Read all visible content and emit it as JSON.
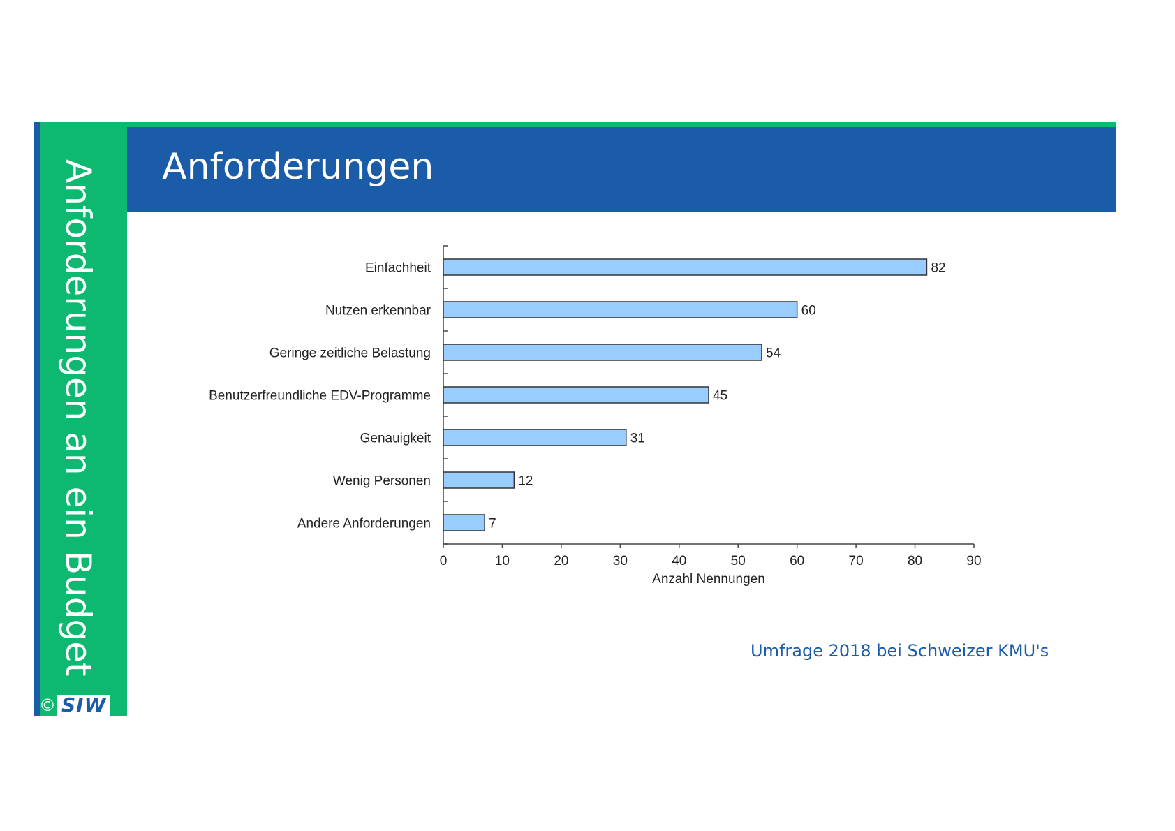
{
  "slide": {
    "side_title": "Anforderungen an ein Budget",
    "header_title": "Anforderungen",
    "footnote": "Umfrage 2018 bei Schweizer KMU's",
    "logo": {
      "copyright": "©",
      "text": "SIW"
    }
  },
  "colors": {
    "brand_blue": "#1b5ca9",
    "brand_green": "#0db870",
    "bar_fill": "#99ccff",
    "bar_stroke": "#333333"
  },
  "chart_data": {
    "type": "bar",
    "orientation": "horizontal",
    "categories": [
      "Einfachheit",
      "Nutzen erkennbar",
      "Geringe zeitliche Belastung",
      "Benutzerfreundliche EDV-Programme",
      "Genauigkeit",
      "Wenig Personen",
      "Andere Anforderungen"
    ],
    "values": [
      82,
      60,
      54,
      45,
      31,
      12,
      7
    ],
    "xlabel": "Anzahl Nennungen",
    "ylabel": "",
    "xlim": [
      0,
      90
    ],
    "xticks": [
      0,
      10,
      20,
      30,
      40,
      50,
      60,
      70,
      80,
      90
    ],
    "data_labels": true,
    "grid": false,
    "legend": "none"
  }
}
